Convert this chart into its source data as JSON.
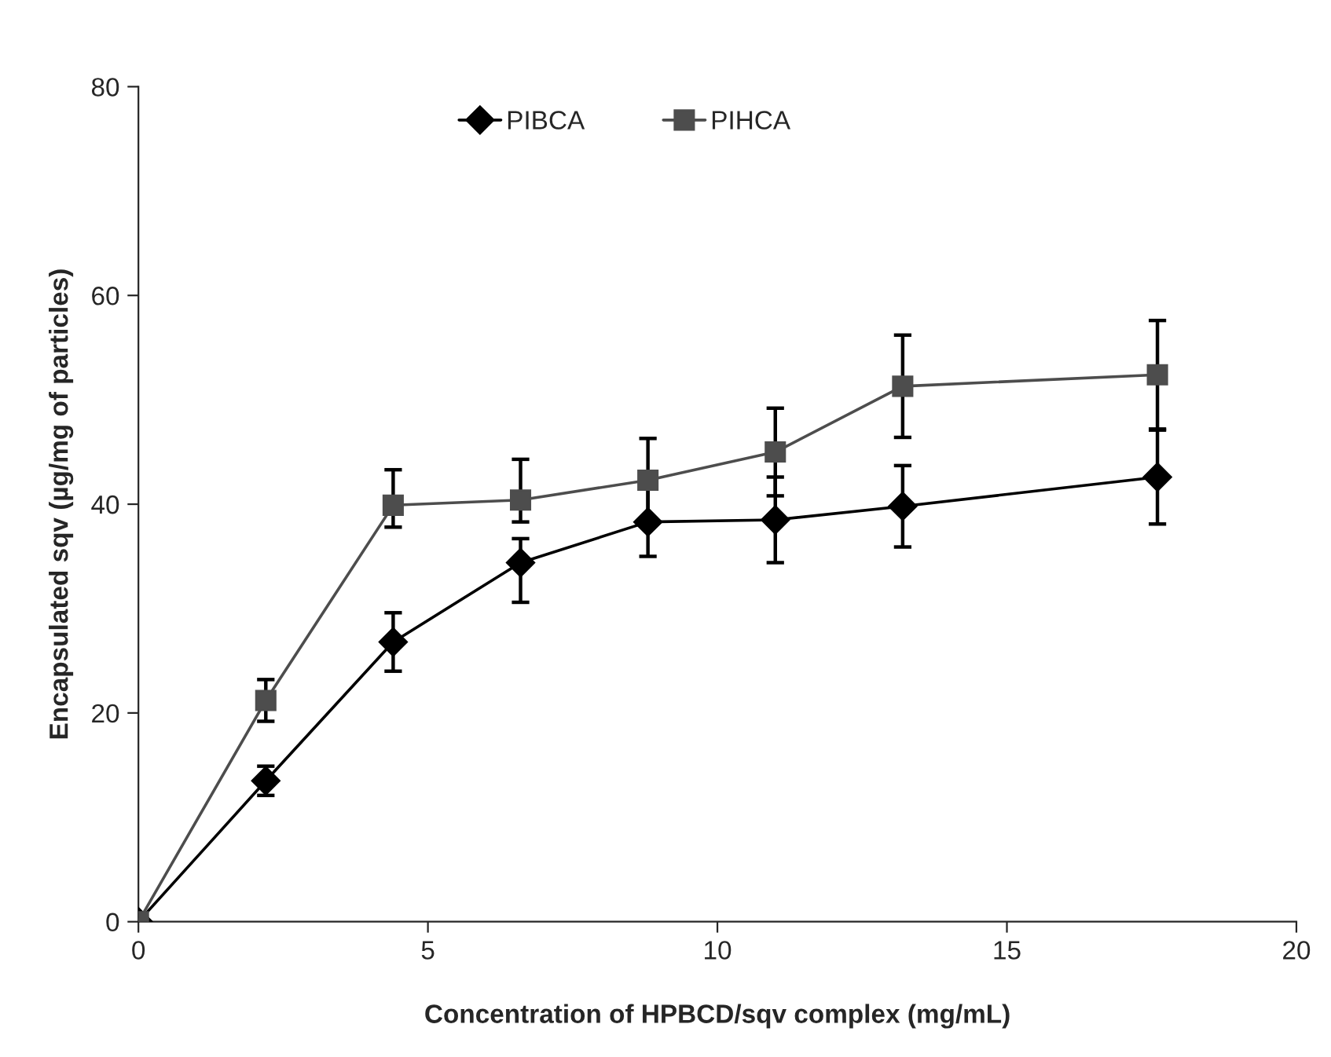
{
  "chart_data": {
    "type": "line",
    "xlabel": "Concentration of HPBCD/sqv complex (mg/mL)",
    "ylabel": "Encapsulated sqv (µg/mg of particles)",
    "xlim": [
      0,
      20
    ],
    "xticks": [
      0,
      5,
      10,
      15,
      20
    ],
    "ylim": [
      0,
      80
    ],
    "yticks": [
      0,
      20,
      40,
      60,
      80
    ],
    "grid": false,
    "legend": "top",
    "line_style": "solid",
    "series": [
      {
        "name": "PIBCA",
        "color": "#000000",
        "marker": "diamond",
        "x": [
          0,
          2.2,
          4.4,
          6.6,
          8.8,
          11.0,
          13.2,
          17.6
        ],
        "values": [
          0,
          13.5,
          26.8,
          34.4,
          38.3,
          38.5,
          39.8,
          42.6
        ],
        "errors": [
          null,
          1.4,
          2.8,
          [
            30.6,
            36.7
          ],
          3.3,
          4.1,
          3.9,
          4.5
        ]
      },
      {
        "name": "PIHCA",
        "color": "#4d4d4d",
        "marker": "square",
        "x": [
          0,
          2.2,
          4.4,
          6.6,
          8.8,
          11.0,
          13.2,
          17.6
        ],
        "values": [
          0,
          21.2,
          39.9,
          40.4,
          42.3,
          45.0,
          51.3,
          52.4
        ],
        "errors": [
          null,
          2.0,
          [
            37.8,
            43.3
          ],
          [
            38.3,
            44.3
          ],
          4.0,
          4.2,
          4.9,
          5.2
        ]
      }
    ]
  }
}
